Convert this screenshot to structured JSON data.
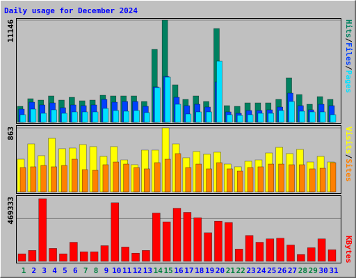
{
  "legend_separator": "/",
  "chart_data": [
    {
      "type": "bar",
      "title": "Daily usage for December 2024",
      "ylim": [
        0,
        11146
      ],
      "yticks": [
        11146
      ],
      "grid": true,
      "series": [
        {
          "name": "Hits",
          "color": "#008060",
          "values": [
            1744,
            2577,
            2426,
            2880,
            2426,
            2729,
            2350,
            2426,
            2956,
            2880,
            2880,
            2880,
            2274,
            7958,
            11146,
            4093,
            2501,
            2880,
            2274,
            10232,
            1819,
            1744,
            2122,
            2122,
            2122,
            2501,
            4851,
            3032,
            1971,
            2804,
            2501
          ]
        },
        {
          "name": "Files",
          "color": "#0040ff",
          "values": [
            1440,
            2198,
            1895,
            2122,
            1592,
            1895,
            1819,
            1895,
            2501,
            2198,
            2274,
            2274,
            1744,
            3866,
            5003,
            2729,
            1819,
            1971,
            1668,
            4396,
            1137,
            985,
            1289,
            1289,
            1364,
            1668,
            3184,
            1819,
            1364,
            1971,
            1819
          ]
        },
        {
          "name": "Pages",
          "color": "#00e0ff",
          "values": [
            834,
            1440,
            985,
            1364,
            985,
            1137,
            1137,
            1137,
            1516,
            1289,
            1213,
            1289,
            1061,
            3790,
            4927,
            1971,
            910,
            1137,
            1137,
            6670,
            834,
            758,
            834,
            985,
            985,
            1289,
            2274,
            1213,
            1137,
            1137,
            834
          ]
        }
      ]
    },
    {
      "type": "bar",
      "ylim": [
        0,
        863
      ],
      "yticks": [
        863
      ],
      "grid": true,
      "series": [
        {
          "name": "Visits",
          "color": "#ffff00",
          "values": [
            441,
            647,
            488,
            722,
            582,
            591,
            638,
            610,
            478,
            610,
            431,
            366,
            563,
            563,
            863,
            647,
            460,
            544,
            507,
            535,
            375,
            338,
            413,
            431,
            525,
            600,
            516,
            572,
            403,
            478,
            403
          ]
        },
        {
          "name": "Sites",
          "color": "#ff8000",
          "values": [
            328,
            338,
            356,
            338,
            356,
            441,
            300,
            291,
            366,
            403,
            375,
            328,
            310,
            394,
            441,
            516,
            328,
            375,
            310,
            394,
            310,
            281,
            328,
            338,
            375,
            375,
            366,
            366,
            310,
            319,
            394
          ]
        }
      ]
    },
    {
      "type": "bar",
      "categories": [
        "1",
        "2",
        "3",
        "4",
        "5",
        "6",
        "7",
        "8",
        "9",
        "10",
        "11",
        "12",
        "13",
        "14",
        "15",
        "16",
        "17",
        "18",
        "19",
        "20",
        "21",
        "22",
        "23",
        "24",
        "25",
        "26",
        "27",
        "28",
        "29",
        "30",
        "31"
      ],
      "category_colors": [
        "#008040",
        "#0000ff",
        "#0000ff",
        "#0000ff",
        "#0000ff",
        "#0000ff",
        "#008040",
        "#008040",
        "#0000ff",
        "#0000ff",
        "#0000ff",
        "#0000ff",
        "#0000ff",
        "#008040",
        "#008040",
        "#0000ff",
        "#0000ff",
        "#0000ff",
        "#0000ff",
        "#0000ff",
        "#008040",
        "#008040",
        "#0000ff",
        "#0000ff",
        "#0000ff",
        "#0000ff",
        "#0000ff",
        "#008040",
        "#008040",
        "#0000ff",
        "#0000ff"
      ],
      "ylim": [
        0,
        700000
      ],
      "yticks": [
        469333
      ],
      "grid": true,
      "series": [
        {
          "name": "KBytes",
          "color": "#ff0000",
          "values": [
            81950,
            119200,
            685400,
            141550,
            81950,
            208600,
            104300,
            104300,
            171350,
            640700,
            156450,
            89400,
            119200,
            528950,
            432100,
            581100,
            536400,
            476800,
            312900,
            439550,
            424650,
            134100,
            283100,
            208600,
            245850,
            253300,
            178800,
            74500,
            149000,
            245850,
            126650
          ]
        }
      ]
    }
  ]
}
